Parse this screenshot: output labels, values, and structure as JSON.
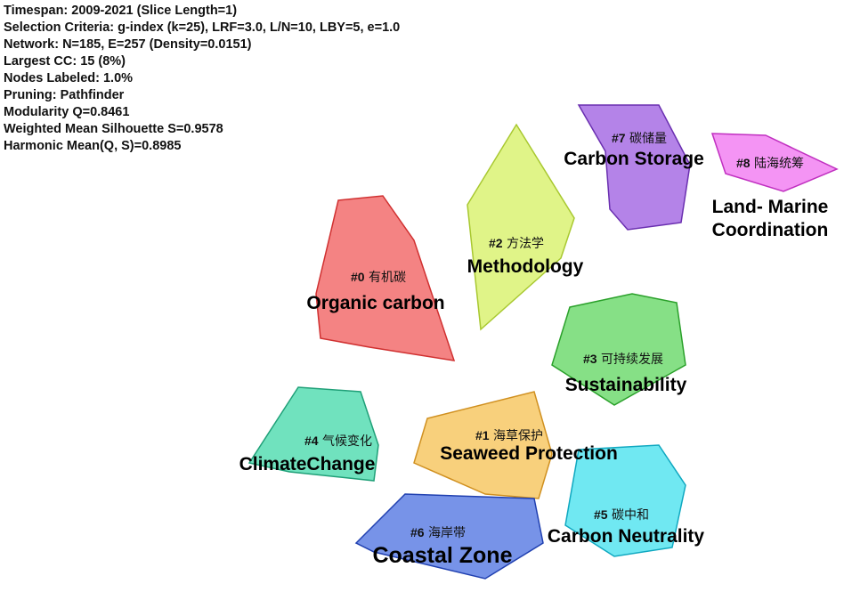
{
  "info": [
    "Timespan: 2009-2021 (Slice Length=1)",
    "Selection Criteria: g-index (k=25), LRF=3.0, L/N=10, LBY=5, e=1.0",
    "Network: N=185, E=257 (Density=0.0151)",
    "Largest CC: 15 (8%)",
    "Nodes Labeled: 1.0%",
    "Pruning: Pathfinder",
    "Modularity Q=0.8461",
    "Weighted Mean Silhouette S=0.9578",
    "Harmonic Mean(Q, S)=0.8985"
  ],
  "clusters": [
    {
      "code": "#0",
      "name": "有机碳",
      "label": "Organic carbon"
    },
    {
      "code": "#1",
      "name": "海草保护",
      "label": "Seaweed Protection"
    },
    {
      "code": "#2",
      "name": "方法学",
      "label": "Methodology"
    },
    {
      "code": "#3",
      "name": "可持续发展",
      "label": "Sustainability"
    },
    {
      "code": "#4",
      "name": "气候变化",
      "label": "ClimateChange"
    },
    {
      "code": "#5",
      "name": "碳中和",
      "label": "Carbon Neutrality"
    },
    {
      "code": "#6",
      "name": "海岸带",
      "label": "Coastal Zone"
    },
    {
      "code": "#7",
      "name": "碳储量",
      "label": "Carbon Storage"
    },
    {
      "code": "#8",
      "name": "陆海统筹",
      "label": [
        "Land- Marine",
        "Coordination"
      ]
    }
  ]
}
